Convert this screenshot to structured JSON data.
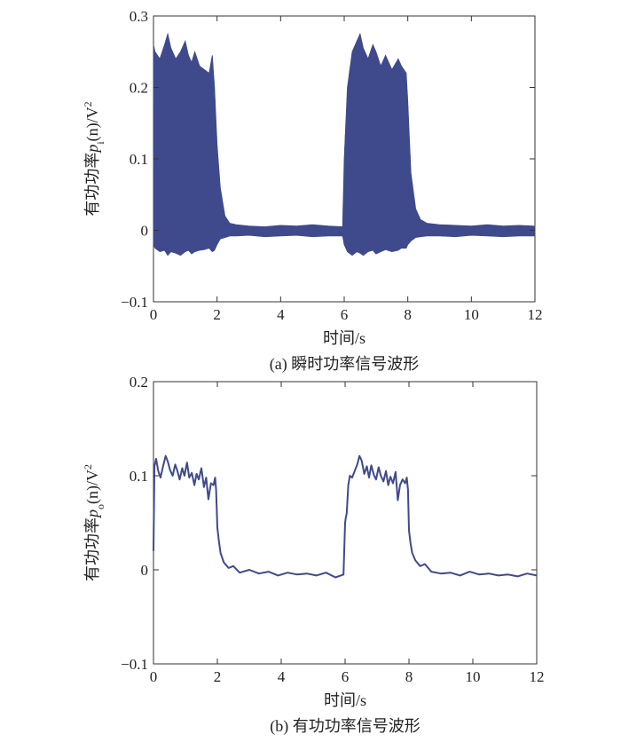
{
  "chart_data": [
    {
      "id": "a",
      "type": "area",
      "caption": "(a) 瞬时功率信号波形",
      "xlabel": "时间/s",
      "ylabel": {
        "prefix": "有功功率",
        "var": "p",
        "sub": "i",
        "arg": "(n)/V",
        "sup": "2"
      },
      "xlim": [
        0,
        12
      ],
      "ylim": [
        -0.1,
        0.3
      ],
      "xticks": [
        0,
        2,
        4,
        6,
        8,
        10,
        12
      ],
      "yticks": [
        -0.1,
        0,
        0.1,
        0.2,
        0.3
      ],
      "xtick_labels": [
        "0",
        "2",
        "4",
        "6",
        "8",
        "10",
        "12"
      ],
      "ytick_labels": [
        "−0.1",
        "0",
        "0.1",
        "0.2",
        "0.3"
      ],
      "color": "#3f4a8c",
      "series": [
        {
          "x": [
            0,
            0.05,
            0.2,
            0.35,
            0.45,
            0.55,
            0.7,
            0.85,
            1.0,
            1.1,
            1.2,
            1.3,
            1.45,
            1.6,
            1.75,
            1.85,
            1.92,
            2.0,
            2.1,
            2.25,
            2.4,
            2.6,
            3.0,
            3.5,
            4.0,
            4.5,
            5.0,
            5.5,
            5.95,
            6.0,
            6.1,
            6.25,
            6.4,
            6.5,
            6.6,
            6.75,
            6.9,
            7.0,
            7.15,
            7.3,
            7.5,
            7.7,
            7.8,
            7.95,
            8.0,
            8.1,
            8.25,
            8.4,
            8.6,
            9.0,
            9.5,
            10.0,
            10.5,
            11.0,
            11.5,
            12.0
          ],
          "upper": [
            0.26,
            0.25,
            0.24,
            0.26,
            0.275,
            0.255,
            0.24,
            0.25,
            0.265,
            0.245,
            0.235,
            0.25,
            0.23,
            0.225,
            0.22,
            0.245,
            0.2,
            0.12,
            0.06,
            0.02,
            0.01,
            0.008,
            0.006,
            0.005,
            0.007,
            0.006,
            0.008,
            0.006,
            0.005,
            0.1,
            0.2,
            0.25,
            0.265,
            0.275,
            0.255,
            0.24,
            0.26,
            0.25,
            0.23,
            0.245,
            0.225,
            0.24,
            0.23,
            0.22,
            0.18,
            0.08,
            0.03,
            0.015,
            0.01,
            0.008,
            0.007,
            0.006,
            0.008,
            0.006,
            0.007,
            0.006
          ],
          "lower": [
            -0.02,
            -0.025,
            -0.03,
            -0.028,
            -0.035,
            -0.03,
            -0.032,
            -0.035,
            -0.03,
            -0.028,
            -0.033,
            -0.03,
            -0.028,
            -0.027,
            -0.025,
            -0.03,
            -0.028,
            -0.02,
            -0.012,
            -0.01,
            -0.008,
            -0.008,
            -0.007,
            -0.009,
            -0.008,
            -0.007,
            -0.009,
            -0.008,
            -0.008,
            -0.02,
            -0.03,
            -0.035,
            -0.03,
            -0.032,
            -0.035,
            -0.03,
            -0.028,
            -0.033,
            -0.03,
            -0.027,
            -0.03,
            -0.028,
            -0.025,
            -0.025,
            -0.02,
            -0.015,
            -0.01,
            -0.009,
            -0.008,
            -0.008,
            -0.009,
            -0.007,
            -0.008,
            -0.009,
            -0.008,
            -0.008
          ]
        }
      ]
    },
    {
      "id": "b",
      "type": "line",
      "caption": "(b) 有功功率信号波形",
      "xlabel": "时间/s",
      "ylabel": {
        "prefix": "有功功率",
        "var": "p",
        "sub": "o",
        "arg": "(n)/V",
        "sup": "2"
      },
      "xlim": [
        0,
        12
      ],
      "ylim": [
        -0.1,
        0.2
      ],
      "xticks": [
        0,
        2,
        4,
        6,
        8,
        10,
        12
      ],
      "yticks": [
        -0.1,
        0,
        0.1,
        0.2
      ],
      "xtick_labels": [
        "0",
        "2",
        "4",
        "6",
        "8",
        "10",
        "12"
      ],
      "ytick_labels": [
        "−0.1",
        "0",
        "0.1",
        "0.2"
      ],
      "color": "#3f4a8c",
      "series": [
        {
          "x": [
            0,
            0.03,
            0.08,
            0.15,
            0.22,
            0.3,
            0.38,
            0.45,
            0.52,
            0.6,
            0.68,
            0.75,
            0.82,
            0.9,
            0.97,
            1.05,
            1.12,
            1.2,
            1.28,
            1.35,
            1.42,
            1.5,
            1.58,
            1.65,
            1.72,
            1.8,
            1.88,
            1.93,
            1.96,
            2.0,
            2.05,
            2.1,
            2.2,
            2.35,
            2.5,
            2.7,
            3.0,
            3.3,
            3.6,
            3.9,
            4.2,
            4.5,
            4.8,
            5.1,
            5.4,
            5.7,
            5.95,
            6.0,
            6.02,
            6.05,
            6.1,
            6.15,
            6.22,
            6.3,
            6.38,
            6.45,
            6.52,
            6.6,
            6.68,
            6.75,
            6.82,
            6.9,
            6.97,
            7.05,
            7.12,
            7.2,
            7.28,
            7.35,
            7.42,
            7.5,
            7.58,
            7.65,
            7.72,
            7.8,
            7.88,
            7.93,
            7.97,
            8.0,
            8.05,
            8.1,
            8.2,
            8.35,
            8.5,
            8.7,
            9.0,
            9.3,
            9.6,
            9.9,
            10.2,
            10.5,
            10.8,
            11.1,
            11.4,
            11.7,
            12.0
          ],
          "y": [
            0.02,
            0.11,
            0.118,
            0.105,
            0.098,
            0.11,
            0.121,
            0.115,
            0.106,
            0.1,
            0.112,
            0.105,
            0.096,
            0.108,
            0.1,
            0.114,
            0.098,
            0.103,
            0.09,
            0.102,
            0.096,
            0.108,
            0.088,
            0.098,
            0.075,
            0.092,
            0.09,
            0.098,
            0.085,
            0.045,
            0.03,
            0.018,
            0.008,
            0.002,
            0.004,
            -0.003,
            0.0,
            -0.004,
            -0.002,
            -0.006,
            -0.003,
            -0.005,
            -0.004,
            -0.006,
            -0.003,
            -0.008,
            -0.005,
            0.05,
            0.055,
            0.06,
            0.09,
            0.1,
            0.098,
            0.105,
            0.112,
            0.121,
            0.116,
            0.102,
            0.11,
            0.098,
            0.111,
            0.101,
            0.096,
            0.109,
            0.1,
            0.094,
            0.105,
            0.09,
            0.099,
            0.092,
            0.104,
            0.074,
            0.09,
            0.096,
            0.092,
            0.098,
            0.085,
            0.042,
            0.028,
            0.018,
            0.01,
            0.004,
            0.006,
            -0.002,
            -0.004,
            -0.003,
            -0.006,
            -0.002,
            -0.005,
            -0.004,
            -0.006,
            -0.005,
            -0.007,
            -0.004,
            -0.006
          ]
        }
      ]
    }
  ]
}
